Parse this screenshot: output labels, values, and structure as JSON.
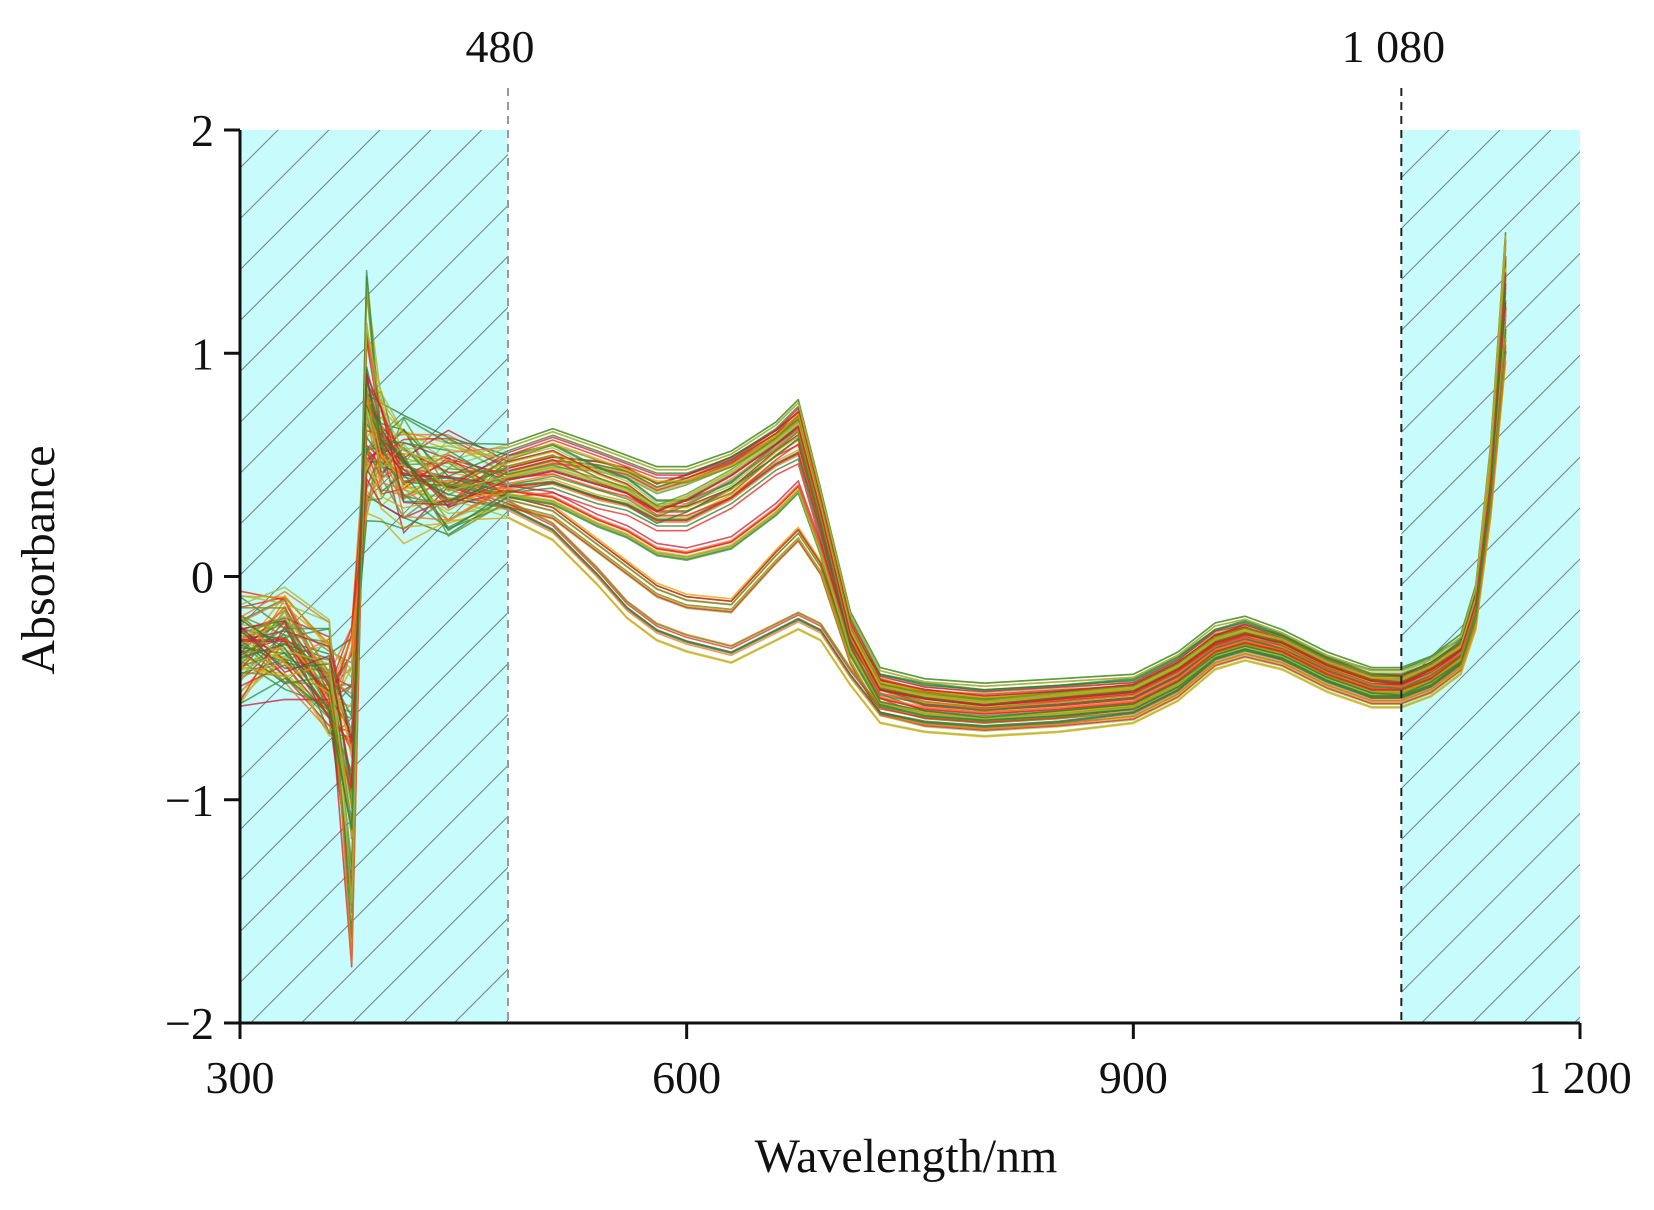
{
  "chart_data": {
    "type": "line",
    "xlabel": "Wavelength/nm",
    "ylabel": "Absorbance",
    "xlim": [
      300,
      1200
    ],
    "ylim": [
      -2,
      2
    ],
    "x_ticks": [
      300,
      600,
      900,
      1200
    ],
    "x_tick_labels": [
      "300",
      "600",
      "900",
      "1 200"
    ],
    "y_ticks": [
      2,
      1,
      0,
      -1,
      -2
    ],
    "y_tick_labels": [
      "2",
      "1",
      "0",
      "−1",
      "−2"
    ],
    "grid": false,
    "legend": "none",
    "excluded_regions": [
      {
        "from": 300,
        "to": 480,
        "fill": "#c8fbfb",
        "hatch": "#555555"
      },
      {
        "from": 1080,
        "to": 1200,
        "fill": "#c8fbfb",
        "hatch": "#555555"
      }
    ],
    "markers": [
      {
        "x": 480,
        "label": "480",
        "style": "dashed",
        "color": "#999999"
      },
      {
        "x": 1080,
        "label": "1 080",
        "style": "dashed",
        "color": "#222222"
      }
    ],
    "x": [
      300,
      330,
      360,
      375,
      385,
      395,
      410,
      440,
      480,
      510,
      540,
      560,
      580,
      600,
      630,
      660,
      675,
      690,
      710,
      730,
      760,
      800,
      850,
      900,
      930,
      955,
      975,
      1000,
      1030,
      1060,
      1080,
      1100,
      1120,
      1130,
      1140,
      1150
    ],
    "series": [
      {
        "values": [
          -0.35,
          -0.25,
          -0.45,
          -0.3,
          0.6,
          0.55,
          0.45,
          0.4,
          0.4,
          0.42,
          0.35,
          0.32,
          0.25,
          0.25,
          0.35,
          0.5,
          0.55,
          0.2,
          -0.3,
          -0.5,
          -0.58,
          -0.6,
          -0.58,
          -0.55,
          -0.45,
          -0.32,
          -0.28,
          -0.33,
          -0.42,
          -0.5,
          -0.5,
          -0.45,
          -0.35,
          -0.15,
          0.4,
          1.2
        ]
      },
      {
        "values": [
          -0.3,
          -0.3,
          -0.5,
          -1.3,
          0.9,
          0.6,
          0.5,
          0.45,
          0.45,
          0.5,
          0.48,
          0.45,
          0.38,
          0.42,
          0.5,
          0.62,
          0.7,
          0.3,
          -0.25,
          -0.5,
          -0.55,
          -0.58,
          -0.55,
          -0.52,
          -0.42,
          -0.3,
          -0.25,
          -0.3,
          -0.4,
          -0.47,
          -0.48,
          -0.42,
          -0.33,
          -0.12,
          0.45,
          1.4
        ]
      },
      {
        "values": [
          -0.4,
          -0.35,
          -0.55,
          -0.6,
          0.5,
          0.45,
          0.4,
          0.35,
          0.35,
          0.3,
          0.15,
          0.05,
          -0.05,
          -0.1,
          -0.12,
          0.1,
          0.2,
          0.05,
          -0.35,
          -0.58,
          -0.63,
          -0.65,
          -0.63,
          -0.6,
          -0.5,
          -0.36,
          -0.32,
          -0.36,
          -0.46,
          -0.53,
          -0.53,
          -0.48,
          -0.38,
          -0.18,
          0.35,
          1.1
        ]
      },
      {
        "values": [
          -0.3,
          -0.28,
          -0.42,
          -0.9,
          0.7,
          0.65,
          0.52,
          0.48,
          0.5,
          0.55,
          0.45,
          0.4,
          0.3,
          0.3,
          0.38,
          0.55,
          0.62,
          0.25,
          -0.28,
          -0.48,
          -0.52,
          -0.55,
          -0.53,
          -0.5,
          -0.4,
          -0.28,
          -0.24,
          -0.3,
          -0.4,
          -0.46,
          -0.46,
          -0.4,
          -0.32,
          -0.1,
          0.5,
          1.3
        ]
      },
      {
        "values": [
          -0.45,
          -0.4,
          -0.6,
          -0.4,
          0.4,
          0.4,
          0.35,
          0.3,
          0.3,
          0.2,
          0.0,
          -0.15,
          -0.25,
          -0.3,
          -0.35,
          -0.25,
          -0.2,
          -0.25,
          -0.45,
          -0.62,
          -0.66,
          -0.68,
          -0.66,
          -0.62,
          -0.52,
          -0.38,
          -0.34,
          -0.38,
          -0.48,
          -0.55,
          -0.55,
          -0.5,
          -0.4,
          -0.2,
          0.3,
          1.0
        ]
      },
      {
        "values": [
          -0.2,
          -0.2,
          -0.35,
          -1.6,
          1.2,
          0.7,
          0.55,
          0.5,
          0.55,
          0.62,
          0.55,
          0.5,
          0.45,
          0.45,
          0.52,
          0.65,
          0.75,
          0.35,
          -0.2,
          -0.45,
          -0.5,
          -0.52,
          -0.5,
          -0.48,
          -0.38,
          -0.25,
          -0.22,
          -0.28,
          -0.38,
          -0.45,
          -0.45,
          -0.4,
          -0.3,
          -0.08,
          0.55,
          1.5
        ]
      },
      {
        "values": [
          -0.38,
          -0.3,
          -0.5,
          -0.7,
          0.6,
          0.5,
          0.42,
          0.38,
          0.38,
          0.35,
          0.25,
          0.2,
          0.12,
          0.1,
          0.15,
          0.3,
          0.4,
          0.12,
          -0.32,
          -0.55,
          -0.6,
          -0.62,
          -0.6,
          -0.57,
          -0.47,
          -0.34,
          -0.3,
          -0.34,
          -0.44,
          -0.51,
          -0.51,
          -0.46,
          -0.36,
          -0.16,
          0.4,
          1.2
        ]
      },
      {
        "values": [
          -0.32,
          -0.27,
          -0.48,
          -1.1,
          0.8,
          0.58,
          0.47,
          0.42,
          0.42,
          0.46,
          0.4,
          0.36,
          0.28,
          0.33,
          0.44,
          0.58,
          0.66,
          0.28,
          -0.27,
          -0.52,
          -0.56,
          -0.59,
          -0.56,
          -0.53,
          -0.43,
          -0.31,
          -0.27,
          -0.31,
          -0.41,
          -0.48,
          -0.49,
          -0.43,
          -0.34,
          -0.13,
          0.42,
          1.35
        ]
      }
    ]
  }
}
